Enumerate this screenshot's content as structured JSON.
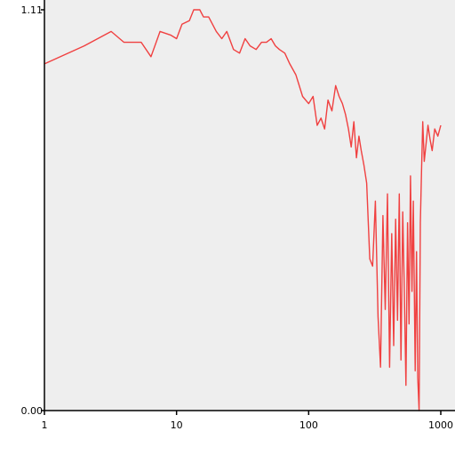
{
  "chart_data": {
    "type": "line",
    "title": "",
    "xlabel": "",
    "ylabel": "",
    "x_scale": "log",
    "xlim": [
      1,
      1000
    ],
    "ylim": [
      0,
      1.11
    ],
    "grid": false,
    "legend": "none",
    "colors": {
      "plot_background": "#eeeeee",
      "line": "#f04040",
      "axis": "#000000"
    },
    "x_ticks": [
      {
        "value": 1,
        "label": "1"
      },
      {
        "value": 10,
        "label": "10"
      },
      {
        "value": 100,
        "label": "100"
      },
      {
        "value": 1000,
        "label": "1000"
      }
    ],
    "y_ticks": [
      {
        "value": 0,
        "label": "0.00"
      },
      {
        "value": 1.11,
        "label": "1.11"
      }
    ],
    "series": [
      {
        "x": [
          1,
          2,
          3.2,
          4,
          5.4,
          6.4,
          7.5,
          9,
          10,
          11,
          12.5,
          13.5,
          15,
          16,
          17.5,
          20,
          22,
          24,
          27,
          30,
          33,
          36,
          40,
          44,
          48,
          52,
          56,
          60,
          66,
          72,
          80,
          90,
          100,
          108,
          116,
          124,
          132,
          140,
          150,
          160,
          170,
          180,
          190,
          200,
          210,
          220,
          230,
          240,
          250,
          262,
          275,
          290,
          305,
          320,
          335,
          350,
          365,
          380,
          395,
          410,
          425,
          440,
          455,
          470,
          485,
          500,
          515,
          530,
          545,
          560,
          575,
          590,
          605,
          620,
          640,
          655,
          670,
          685,
          700,
          715,
          730,
          750,
          775,
          800,
          830,
          860,
          900,
          950,
          1000
        ],
        "y": [
          0.96,
          1.01,
          1.05,
          1.02,
          1.02,
          0.98,
          1.05,
          1.04,
          1.03,
          1.07,
          1.08,
          1.11,
          1.11,
          1.09,
          1.09,
          1.05,
          1.03,
          1.05,
          1.0,
          0.99,
          1.03,
          1.01,
          1.0,
          1.02,
          1.02,
          1.03,
          1.01,
          1.0,
          0.99,
          0.96,
          0.93,
          0.87,
          0.85,
          0.87,
          0.79,
          0.81,
          0.78,
          0.86,
          0.83,
          0.9,
          0.87,
          0.85,
          0.82,
          0.78,
          0.73,
          0.8,
          0.7,
          0.76,
          0.72,
          0.68,
          0.63,
          0.42,
          0.4,
          0.58,
          0.26,
          0.12,
          0.54,
          0.28,
          0.6,
          0.12,
          0.49,
          0.18,
          0.53,
          0.25,
          0.6,
          0.14,
          0.55,
          0.33,
          0.07,
          0.52,
          0.24,
          0.65,
          0.33,
          0.58,
          0.11,
          0.44,
          0.09,
          0.0,
          0.52,
          0.66,
          0.8,
          0.69,
          0.74,
          0.79,
          0.75,
          0.72,
          0.78,
          0.76,
          0.79
        ]
      }
    ]
  }
}
